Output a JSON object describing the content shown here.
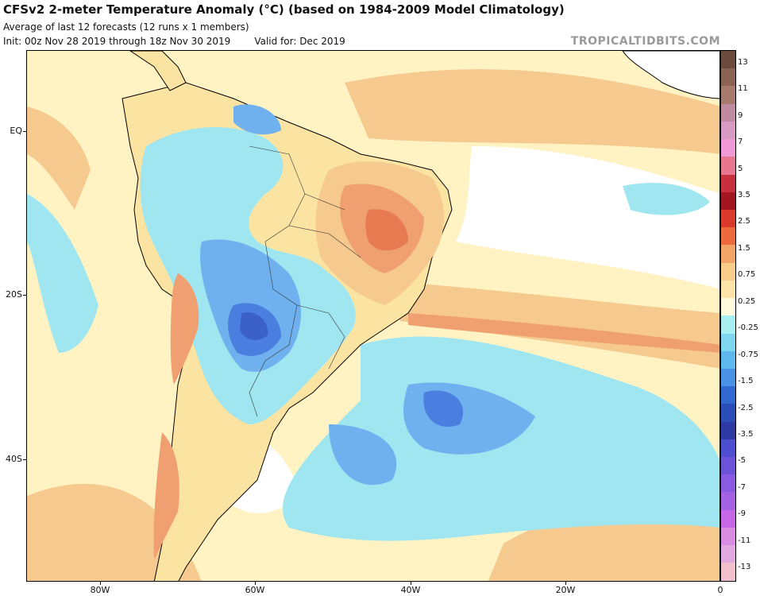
{
  "header": {
    "title": "CFSv2 2-meter Temperature Anomaly (°C) (based on 1984-2009 Model Climatology)",
    "subtitle": "Average of last 12 forecasts (12 runs x 1 members)",
    "init": "Init: 00z Nov 28 2019 through 18z Nov 30 2019",
    "valid": "Valid for: Dec 2019",
    "brand": "TROPICALTIDBITS.COM"
  },
  "axes": {
    "lat_labels": [
      "EQ",
      "20S",
      "40S"
    ],
    "lon_labels": [
      "80W",
      "60W",
      "40W",
      "20W",
      "0"
    ]
  },
  "colors": {
    "cold_strong": "#4a7fe0",
    "cold_med": "#6fb1ee",
    "cold_light": "#9fe6f1",
    "neutral": "#ffffff",
    "warm_faint": "#fff3c4",
    "warm_light": "#fbe4a2",
    "warm_med": "#f6c98e",
    "warm_strong": "#f0a070",
    "warm_hot": "#e87a52",
    "cold_deep": "#3b61c8",
    "land_border": "#000000"
  },
  "colorbar": {
    "labels": [
      "13",
      "11",
      "9",
      "7",
      "5",
      "3.5",
      "2.5",
      "1.5",
      "0.75",
      "0.25",
      "-0.25",
      "-0.75",
      "-1.5",
      "-2.5",
      "-3.5",
      "-5",
      "-7",
      "-9",
      "-11",
      "-13"
    ],
    "colors": [
      "#6b4b3d",
      "#8a6355",
      "#a87a6e",
      "#c08aa0",
      "#d69ac3",
      "#ef9ad6",
      "#e8768f",
      "#c8303d",
      "#a3151f",
      "#d93a2c",
      "#ec6a3c",
      "#f3a567",
      "#f8cd8a",
      "#fde5a9",
      "#fffadc",
      "#a7f0f2",
      "#7fd6ef",
      "#5cb8ee",
      "#4a92e6",
      "#2f68cf",
      "#2a4db8",
      "#2d3aa4",
      "#4d4fd0",
      "#6b52d9",
      "#8a5be0",
      "#a561e4",
      "#c667e8",
      "#d88de2",
      "#e0a9df",
      "#f0c0cc"
    ]
  }
}
